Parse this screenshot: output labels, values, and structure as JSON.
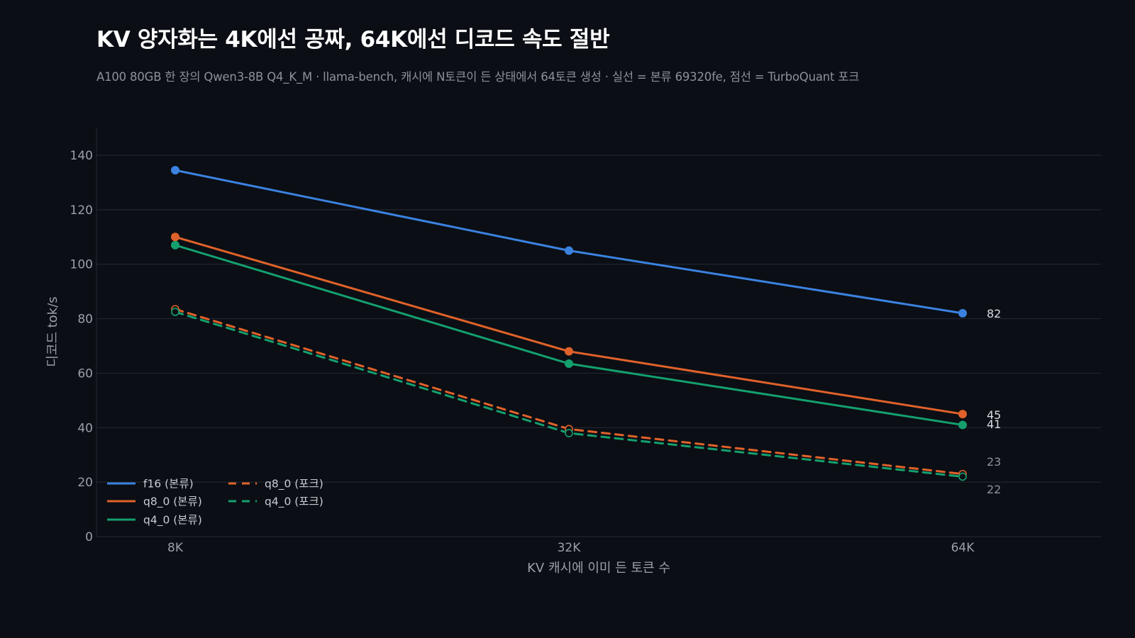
{
  "chart_data": {
    "type": "line",
    "title": "KV 양자화는 4K에선 공짜, 64K에선 디코드 속도 절반",
    "subtitle": "A100 80GB 한 장의 Qwen3-8B Q4_K_M · llama-bench, 캐시에 N토큰이 든 상태에서 64토큰 생성 · 실선 = 본류 69320fe, 점선 = TurboQuant 포크",
    "xlabel": "KV 캐시에 이미 든 토큰 수",
    "ylabel": "디코드 tok/s",
    "categories": [
      "8K",
      "32K",
      "64K"
    ],
    "ylim": [
      0,
      150
    ],
    "yticks": [
      0,
      20,
      40,
      60,
      80,
      100,
      120,
      140
    ],
    "grid": true,
    "legend_position": "bottom-left",
    "series": [
      {
        "name": "f16 (본류)",
        "values": [
          134.5,
          105,
          82
        ],
        "color": "#3b82e0",
        "style": "solid",
        "marker": "filled",
        "end_label": "82"
      },
      {
        "name": "q8_0 (본류)",
        "values": [
          110,
          68,
          45
        ],
        "color": "#e0622a",
        "style": "solid",
        "marker": "filled",
        "end_label": "45"
      },
      {
        "name": "q4_0 (본류)",
        "values": [
          107,
          63.5,
          41
        ],
        "color": "#14a06e",
        "style": "solid",
        "marker": "filled",
        "end_label": "41"
      },
      {
        "name": "q8_0 (포크)",
        "values": [
          83.5,
          39.5,
          23
        ],
        "color": "#e0622a",
        "style": "dashed",
        "marker": "hollow",
        "end_label": "23"
      },
      {
        "name": "q4_0 (포크)",
        "values": [
          82.5,
          38,
          22
        ],
        "color": "#14a06e",
        "style": "dashed",
        "marker": "hollow",
        "end_label": "22"
      }
    ]
  }
}
